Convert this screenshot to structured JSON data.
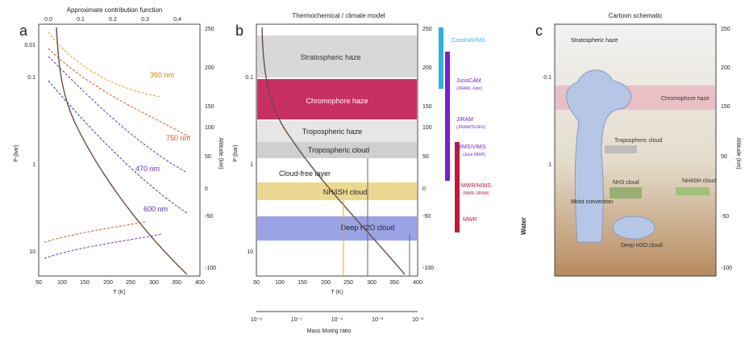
{
  "panel_a": {
    "letter": "a",
    "top_axis_label": "Approximate contribution function",
    "top_ticks": [
      "0.0",
      "0.1",
      "0.2",
      "0.3",
      "0.4"
    ],
    "xlabel": "T (K)",
    "ylabel": "P (bar)",
    "x_ticks": [
      "50",
      "100",
      "150",
      "200",
      "250",
      "300",
      "350",
      "400"
    ],
    "y_ticks": [
      "0.01",
      "0.1",
      "1",
      "10"
    ],
    "right_label": "Altitude (km)",
    "right_ticks": [
      "250",
      "200",
      "150",
      "100",
      "50",
      "0",
      "-50",
      "-100"
    ],
    "wavelengths": [
      {
        "label": "350 nm",
        "color": "#e8a21a"
      },
      {
        "label": "750 nm",
        "color": "#d8551a"
      },
      {
        "label": "470 nm",
        "color": "#6a2fc9"
      },
      {
        "label": "600 nm",
        "color": "#4a2fa0"
      }
    ]
  },
  "panel_b": {
    "letter": "b",
    "title": "Thermochemical / climate model",
    "xlabel": "T (K)",
    "ylabel": "P (bar)",
    "bottom_axis_label": "Mass Mixing ratio",
    "bottom_ticks": [
      "10⁻⁶",
      "10⁻⁵",
      "10⁻⁴",
      "10⁻³",
      "10⁻²"
    ],
    "layers": [
      {
        "label": "Stratospheric haze",
        "color": "#d8d8d8"
      },
      {
        "label": "Chromophore haze",
        "color": "#c5245a"
      },
      {
        "label": "Tropospheric haze",
        "color": "#e6e6e6"
      },
      {
        "label": "Tropospheric cloud",
        "color": "#cfcfcf"
      },
      {
        "label": "Cloud-free layer",
        "color": "#ffffff"
      },
      {
        "label": "NH4SH cloud",
        "color": "#e8d080"
      },
      {
        "label": "Deep H2O cloud",
        "color": "#8c95e0"
      }
    ],
    "instruments": [
      {
        "label": "Cassini/VIMS",
        "color": "#30b0e0"
      },
      {
        "label": "JunoCAM",
        "sub": "(JIRAM, Juno)",
        "color": "#7a1fd0"
      },
      {
        "label": "JIRAM",
        "sub": "(JIRAM/TEXES)",
        "color": "#7a1fd0"
      },
      {
        "label": "NIMS/VIMS",
        "sub": "(Juno MWR)",
        "color": "#7a1fd0"
      },
      {
        "label": "MWR/NIMS",
        "sub": "(MWR-JIRAM)",
        "color": "#c2183a"
      },
      {
        "label": "MWR",
        "sub": "",
        "color": "#c2183a"
      }
    ]
  },
  "panel_c": {
    "letter": "c",
    "title": "Cartoon schematic",
    "ylabel": "P (bar)",
    "right_label": "Altitude (km)",
    "labels": {
      "upper": "Stratospheric haze",
      "chromo": "Chromophore haze",
      "cloud": "Tropospheric cloud",
      "nh3": "NH3 cloud",
      "nh4sh": "NH4SH cloud",
      "h2o": "Deep H2O cloud",
      "moist": "Moist convection",
      "side": "Water"
    }
  }
}
